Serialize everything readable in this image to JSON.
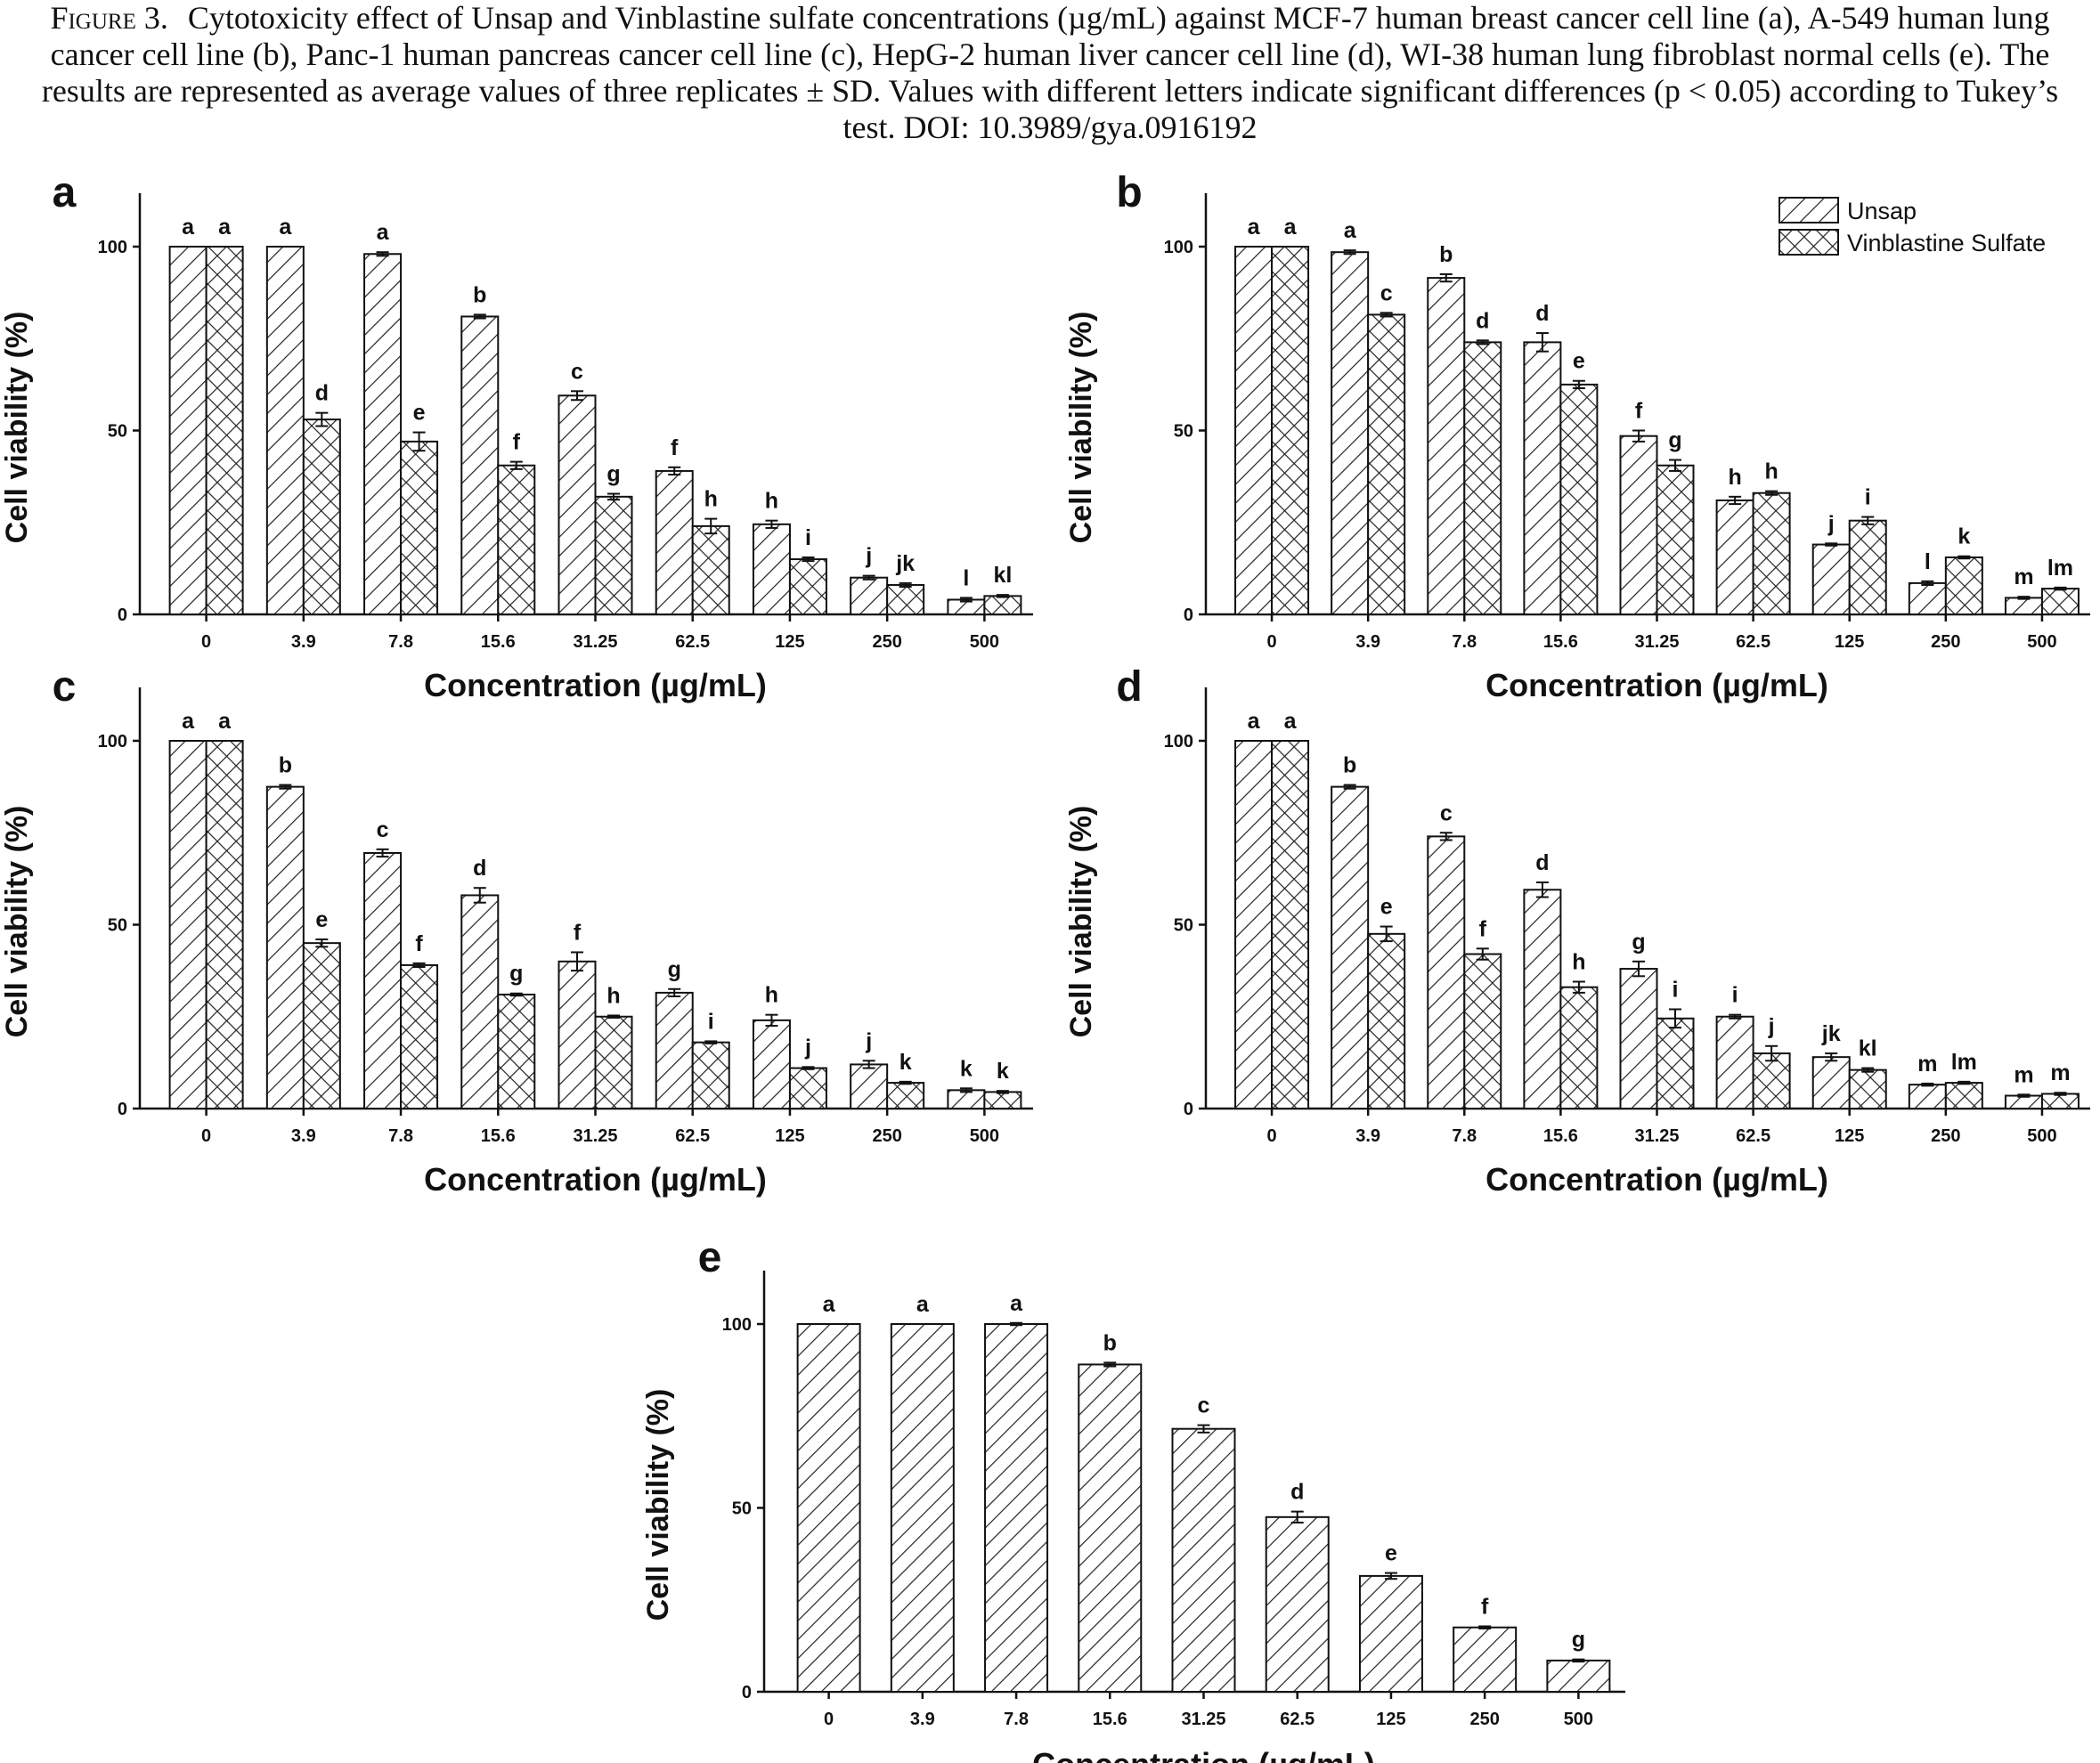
{
  "caption": {
    "label": "Figure 3.",
    "text": "Cytotoxicity effect of Unsap and Vinblastine sulfate concentrations (µg/mL) against MCF-7 human breast cancer cell line (a), A-549 human lung cancer cell line (b), Panc-1 human pancreas cancer cell line (c), HepG-2 human liver cancer cell line (d), WI-38 human lung fibroblast normal cells (e). The results are represented as average values of three replicates ± SD. Values with different letters indicate significant differences (p < 0.05) according to Tukey’s test. DOI: 10.3989/gya.0916192"
  },
  "legend": {
    "placement": "top-right of panel b",
    "entries": [
      {
        "label": "Unsap",
        "pattern": "diagonal-hatch"
      },
      {
        "label": "Vinblastine Sulfate",
        "pattern": "cross-hatch"
      }
    ]
  },
  "chart_data": [
    {
      "panel": "a",
      "type": "bar",
      "xlabel": "Concentration (µg/mL)",
      "ylabel": "Cell viability (%)",
      "ylim": [
        0,
        100
      ],
      "yticks": [
        0,
        50,
        100
      ],
      "categories": [
        "0",
        "3.9",
        "7.8",
        "15.6",
        "31.25",
        "62.5",
        "125",
        "250",
        "500"
      ],
      "series": [
        {
          "name": "Unsap",
          "values": [
            100,
            100,
            98,
            81,
            59.5,
            39,
            24.5,
            10,
            4
          ],
          "errors": [
            0,
            0,
            0.5,
            0.5,
            1.2,
            1,
            1,
            0.5,
            0.5
          ],
          "labels": [
            "a",
            "a",
            "a",
            "b",
            "c",
            "f",
            "h",
            "j",
            "l"
          ]
        },
        {
          "name": "Vinblastine Sulfate",
          "values": [
            100,
            53,
            47,
            40.5,
            32,
            24,
            15,
            8,
            5
          ],
          "errors": [
            0,
            1.8,
            2.5,
            1,
            0.8,
            2,
            0.5,
            0.5,
            0.3
          ],
          "labels": [
            "a",
            "d",
            "e",
            "f",
            "g",
            "h",
            "i",
            "jk",
            "kl"
          ]
        }
      ]
    },
    {
      "panel": "b",
      "type": "bar",
      "xlabel": "Concentration (µg/mL)",
      "ylabel": "Cell viability (%)",
      "ylim": [
        0,
        100
      ],
      "yticks": [
        0,
        50,
        100
      ],
      "categories": [
        "0",
        "3.9",
        "7.8",
        "15.6",
        "31.25",
        "62.5",
        "125",
        "250",
        "500"
      ],
      "series": [
        {
          "name": "Unsap",
          "values": [
            100,
            98.5,
            91.5,
            74,
            48.5,
            31,
            19,
            8.5,
            4.5
          ],
          "errors": [
            0,
            0.5,
            1,
            2.5,
            1.5,
            1,
            0.3,
            0.5,
            0.3
          ],
          "labels": [
            "a",
            "a",
            "b",
            "d",
            "f",
            "h",
            "j",
            "l",
            "m"
          ]
        },
        {
          "name": "Vinblastine Sulfate",
          "values": [
            100,
            81.5,
            74,
            62.5,
            40.5,
            33,
            25.5,
            15.5,
            7
          ],
          "errors": [
            0,
            0.5,
            0.5,
            1,
            1.5,
            0.5,
            1,
            0.3,
            0.3
          ],
          "labels": [
            "a",
            "c",
            "d",
            "e",
            "g",
            "h",
            "i",
            "k",
            "lm"
          ]
        }
      ]
    },
    {
      "panel": "c",
      "type": "bar",
      "xlabel": "Concentration (µg/mL)",
      "ylabel": "Cell viability (%)",
      "ylim": [
        0,
        100
      ],
      "yticks": [
        0,
        50,
        100
      ],
      "categories": [
        "0",
        "3.9",
        "7.8",
        "15.6",
        "31.25",
        "62.5",
        "125",
        "250",
        "500"
      ],
      "series": [
        {
          "name": "Unsap",
          "values": [
            100,
            87.5,
            69.5,
            58,
            40,
            31.5,
            24,
            12,
            5
          ],
          "errors": [
            0,
            0.5,
            1,
            2,
            2.5,
            1,
            1.5,
            1,
            0.5
          ],
          "labels": [
            "a",
            "b",
            "c",
            "d",
            "f",
            "g",
            "h",
            "j",
            "k"
          ]
        },
        {
          "name": "Vinblastine Sulfate",
          "values": [
            100,
            45,
            39,
            31,
            25,
            18,
            11,
            7,
            4.5
          ],
          "errors": [
            0,
            1,
            0.5,
            0.3,
            0.3,
            0.3,
            0.3,
            0.3,
            0.3
          ],
          "labels": [
            "a",
            "e",
            "f",
            "g",
            "h",
            "i",
            "j",
            "k",
            "k"
          ]
        }
      ]
    },
    {
      "panel": "d",
      "type": "bar",
      "xlabel": "Concentration (µg/mL)",
      "ylabel": "Cell viability (%)",
      "ylim": [
        0,
        100
      ],
      "yticks": [
        0,
        50,
        100
      ],
      "categories": [
        "0",
        "3.9",
        "7.8",
        "15.6",
        "31.25",
        "62.5",
        "125",
        "250",
        "500"
      ],
      "series": [
        {
          "name": "Unsap",
          "values": [
            100,
            87.5,
            74,
            59.5,
            38,
            25,
            14,
            6.5,
            3.5
          ],
          "errors": [
            0,
            0.5,
            1,
            2,
            2,
            0.5,
            1,
            0.3,
            0.3
          ],
          "labels": [
            "a",
            "b",
            "c",
            "d",
            "g",
            "i",
            "jk",
            "m",
            "m"
          ]
        },
        {
          "name": "Vinblastine Sulfate",
          "values": [
            100,
            47.5,
            42,
            33,
            24.5,
            15,
            10.5,
            7,
            4
          ],
          "errors": [
            0,
            2,
            1.5,
            1.5,
            2.5,
            2,
            0.5,
            0.3,
            0.3
          ],
          "labels": [
            "a",
            "e",
            "f",
            "h",
            "i",
            "j",
            "kl",
            "lm",
            "m"
          ]
        }
      ]
    },
    {
      "panel": "e",
      "type": "bar",
      "xlabel": "Concentration (µg/mL)",
      "ylabel": "Cell viability (%)",
      "ylim": [
        0,
        100
      ],
      "yticks": [
        0,
        50,
        100
      ],
      "categories": [
        "0",
        "3.9",
        "7.8",
        "15.6",
        "31.25",
        "62.5",
        "125",
        "250",
        "500"
      ],
      "series": [
        {
          "name": "Unsap",
          "values": [
            100,
            100,
            100,
            89,
            71.5,
            47.5,
            31.5,
            17.5,
            8.5
          ],
          "errors": [
            0,
            0,
            0.3,
            0.5,
            1,
            1.5,
            0.8,
            0.3,
            0.3
          ],
          "labels": [
            "a",
            "a",
            "a",
            "b",
            "c",
            "d",
            "e",
            "f",
            "g"
          ]
        }
      ]
    }
  ]
}
